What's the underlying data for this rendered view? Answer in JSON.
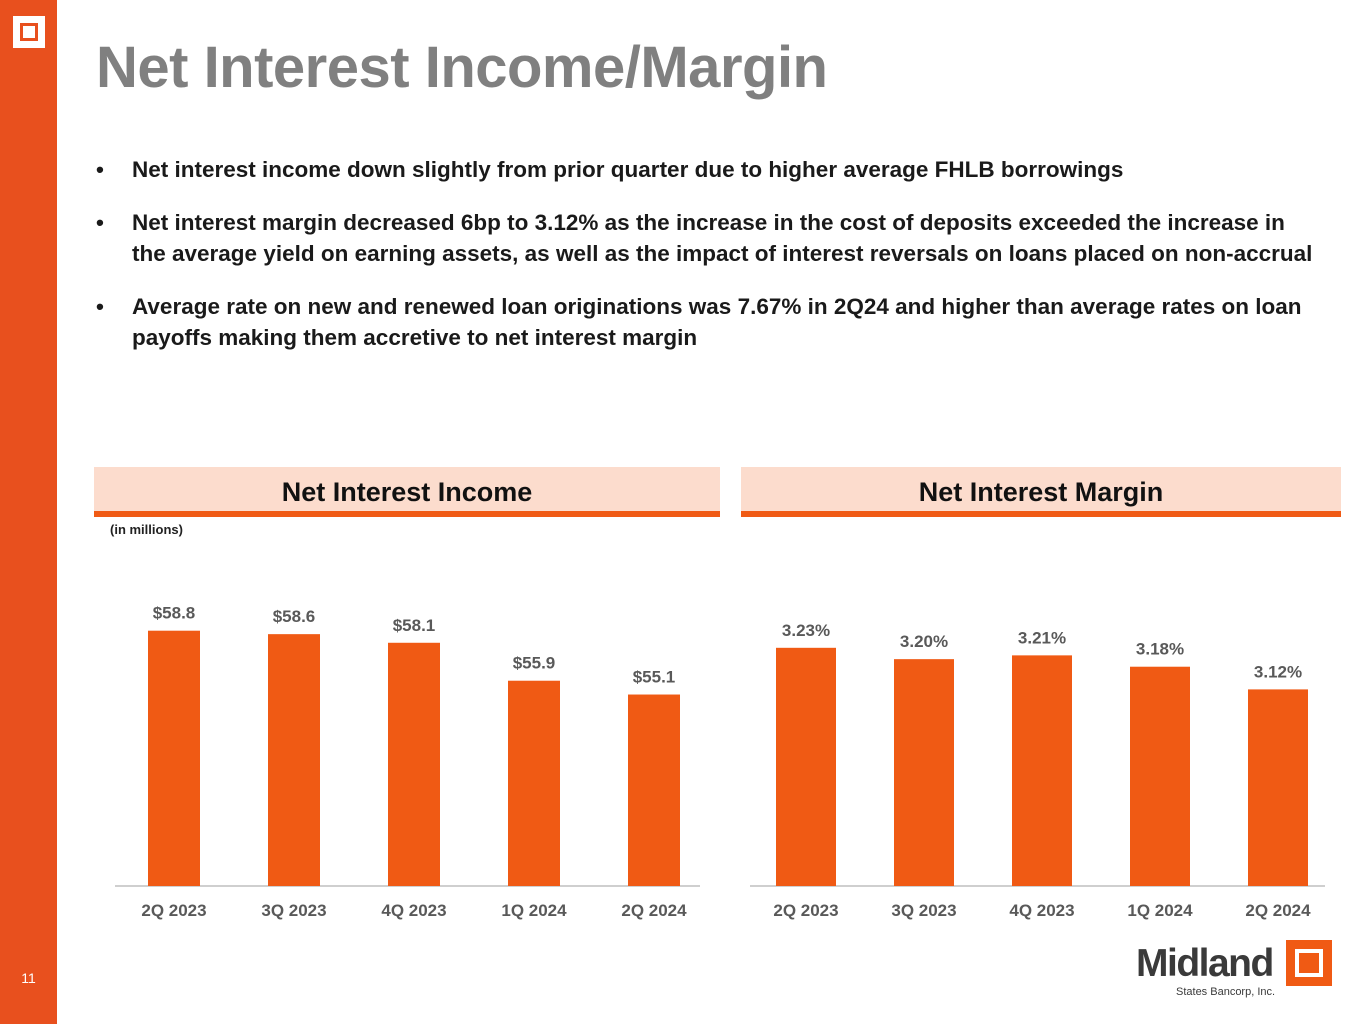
{
  "slide": {
    "page_number": "11",
    "title": "Net Interest Income/Margin",
    "bullets": [
      {
        "marker": "•",
        "text": "Net interest income down slightly from prior quarter due to higher average FHLB borrowings"
      },
      {
        "marker": "•",
        "text": "Net interest margin decreased 6bp to 3.12% as the increase in the cost of deposits exceeded the increase in the average yield on earning assets, as well as the impact of interest reversals on loans placed on non-accrual"
      },
      {
        "marker": "•",
        "text": "Average rate on new and renewed loan originations was 7.67% in 2Q24 and higher than average rates on loan payoffs making them accretive to net interest margin"
      }
    ],
    "logo": {
      "name": "Midland",
      "sub": "States Bancorp, Inc."
    }
  },
  "colors": {
    "accent": "#f05a14",
    "band": "#e8501e",
    "header_bg": "#fcdccd",
    "title": "#808080",
    "label": "#595959"
  },
  "chart_data": [
    {
      "type": "bar",
      "title": "Net Interest Income",
      "units_note": "(in millions)",
      "categories": [
        "2Q 2023",
        "3Q 2023",
        "4Q 2023",
        "1Q 2024",
        "2Q 2024"
      ],
      "values": [
        58.8,
        58.6,
        58.1,
        55.9,
        55.1
      ],
      "labels": [
        "$58.8",
        "$58.6",
        "$58.1",
        "$55.9",
        "$55.1"
      ],
      "ylim": [
        44,
        60
      ],
      "xlabel": "",
      "ylabel": "",
      "grid": false,
      "legend": "none"
    },
    {
      "type": "bar",
      "title": "Net Interest Margin",
      "categories": [
        "2Q 2023",
        "3Q 2023",
        "4Q 2023",
        "1Q 2024",
        "2Q 2024"
      ],
      "values": [
        3.23,
        3.2,
        3.21,
        3.18,
        3.12
      ],
      "labels": [
        "3.23%",
        "3.20%",
        "3.21%",
        "3.18%",
        "3.12%"
      ],
      "ylim": [
        2.6,
        3.33
      ],
      "xlabel": "",
      "ylabel": "",
      "grid": false,
      "legend": "none"
    }
  ]
}
